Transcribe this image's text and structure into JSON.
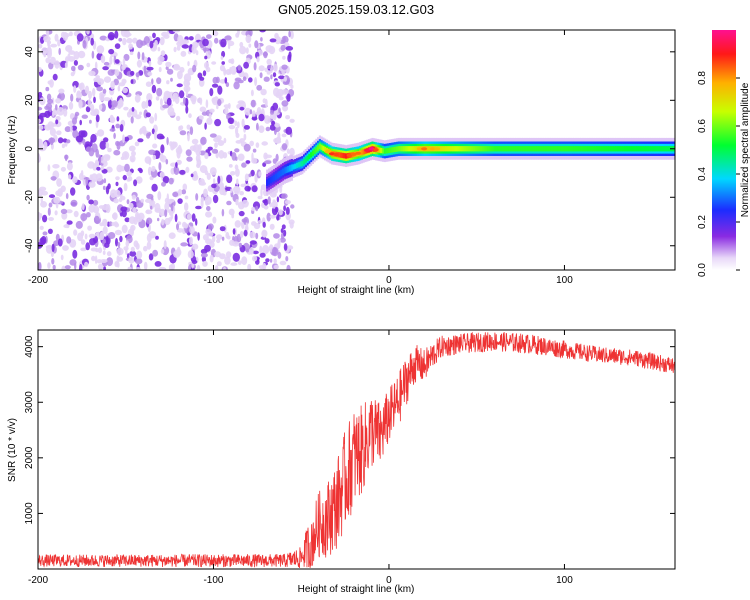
{
  "title": "GN05.2025.159.03.12.G03",
  "chart_data": [
    {
      "type": "heatmap",
      "xlabel": "Height of straight line (km)",
      "ylabel": "Frequency (Hz)",
      "xlim": [
        -200,
        163
      ],
      "ylim": [
        -50,
        49
      ],
      "xticks": [
        -200,
        -100,
        0,
        100
      ],
      "yticks": [
        -40,
        -20,
        0,
        20,
        40
      ],
      "colorbar": {
        "label": "Normalized spectral amplitude",
        "range": [
          0,
          1
        ],
        "ticks": [
          "0.0",
          "0.2",
          "0.4",
          "0.6",
          "0.8"
        ]
      },
      "noise_region_x": [
        -200,
        -55
      ],
      "ridge": {
        "x": [
          -70,
          -60,
          -50,
          -40,
          -33,
          -25,
          -18,
          -10,
          -3,
          5,
          20,
          60,
          100,
          163
        ],
        "y": [
          -14,
          -9,
          -6,
          1,
          -2,
          -3,
          -2,
          0,
          -1,
          0,
          0,
          0,
          0,
          0
        ],
        "amplitude": [
          0.25,
          0.3,
          0.45,
          0.6,
          0.8,
          0.9,
          0.75,
          0.95,
          0.55,
          0.6,
          0.75,
          0.55,
          0.55,
          0.5
        ]
      }
    },
    {
      "type": "line",
      "xlabel": "Height of straight line (km)",
      "ylabel": "SNR (10 * v/v)",
      "xlim": [
        -200,
        163
      ],
      "ylim": [
        0,
        4300
      ],
      "xticks": [
        -200,
        -100,
        0,
        100
      ],
      "yticks": [
        1000,
        2000,
        3000,
        4000
      ],
      "color": "#ee3333",
      "envelope": {
        "x": [
          -200,
          -60,
          -50,
          -45,
          -40,
          -35,
          -30,
          -25,
          -20,
          -15,
          -10,
          -5,
          0,
          5,
          10,
          15,
          20,
          25,
          30,
          40,
          60,
          80,
          100,
          120,
          140,
          163
        ],
        "y": [
          150,
          150,
          200,
          450,
          800,
          900,
          1150,
          1600,
          2000,
          2150,
          2500,
          2400,
          2750,
          3000,
          3400,
          3700,
          3650,
          3850,
          4000,
          4050,
          4100,
          4050,
          3950,
          3850,
          3800,
          3650
        ],
        "spread": [
          110,
          120,
          200,
          500,
          600,
          700,
          800,
          900,
          900,
          800,
          700,
          600,
          500,
          500,
          450,
          350,
          300,
          250,
          200,
          180,
          180,
          180,
          160,
          150,
          150,
          150
        ]
      }
    }
  ]
}
